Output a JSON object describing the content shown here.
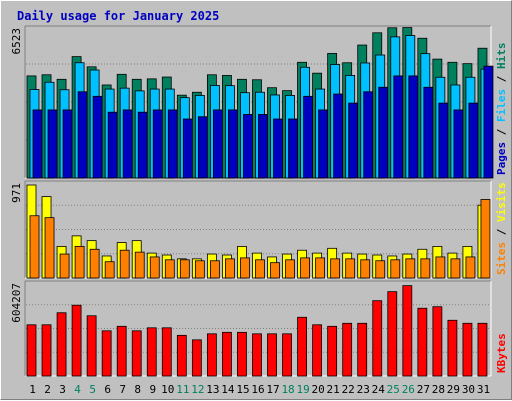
{
  "chart_data": {
    "type": "bar",
    "title": "Daily usage for January 2025",
    "categories": [
      "1",
      "2",
      "3",
      "4",
      "5",
      "6",
      "7",
      "8",
      "9",
      "10",
      "11",
      "12",
      "13",
      "14",
      "15",
      "16",
      "17",
      "18",
      "19",
      "20",
      "21",
      "22",
      "23",
      "24",
      "25",
      "26",
      "27",
      "28",
      "29",
      "30",
      "31"
    ],
    "weekend_days": [
      "4",
      "5",
      "11",
      "12",
      "18",
      "19",
      "25",
      "26"
    ],
    "panels": [
      {
        "id": "hits",
        "ymax_label": "6523",
        "ylim": [
          0,
          6523
        ],
        "legend": [
          "Hits",
          "Files",
          "Pages"
        ],
        "series": [
          {
            "name": "Hits",
            "color": "#00805f",
            "values": [
              4500,
              4550,
              4350,
              5350,
              4900,
              4100,
              4570,
              4350,
              4370,
              4450,
              3650,
              3780,
              4550,
              4520,
              4350,
              4330,
              3980,
              3850,
              5100,
              4620,
              5490,
              5080,
              5860,
              6400,
              6620,
              6630,
              6160,
              5240,
              5100,
              5040,
              5720
            ]
          },
          {
            "name": "Files",
            "color": "#00c0ff",
            "values": [
              3900,
              4220,
              3890,
              5080,
              4760,
              3920,
              3960,
              3840,
              3920,
              3920,
              3540,
              3640,
              4080,
              4070,
              3760,
              3780,
              3660,
              3640,
              4880,
              3920,
              5000,
              4520,
              5070,
              5420,
              6220,
              6280,
              5480,
              4440,
              4100,
              4440,
              4800
            ]
          },
          {
            "name": "Pages",
            "color": "#0000c0",
            "values": [
              3000,
              3000,
              3000,
              3800,
              3600,
              2900,
              3000,
              2900,
              3000,
              3000,
              2600,
              2700,
              3000,
              3000,
              2800,
              2800,
              2600,
              2600,
              3600,
              3000,
              3700,
              3300,
              3800,
              4000,
              4500,
              4500,
              4000,
              3300,
              3000,
              3300,
              4930
            ]
          }
        ]
      },
      {
        "id": "visits",
        "ymax_label": "971",
        "ylim": [
          0,
          971
        ],
        "legend": [
          "Visits",
          "Sites"
        ],
        "series": [
          {
            "name": "Visits",
            "color": "#ffff00",
            "values": [
              971,
              850,
              330,
              440,
              390,
              230,
              370,
              390,
              260,
              240,
              200,
              200,
              250,
              240,
              330,
              260,
              220,
              250,
              290,
              260,
              310,
              260,
              250,
              240,
              230,
              250,
              300,
              330,
              260,
              330,
              760
            ]
          },
          {
            "name": "Sites",
            "color": "#ff8000",
            "values": [
              650,
              630,
              250,
              330,
              300,
              170,
              290,
              270,
              220,
              190,
              190,
              180,
              180,
              200,
              210,
              190,
              160,
              190,
              210,
              210,
              200,
              200,
              190,
              180,
              190,
              200,
              200,
              220,
              200,
              220,
              820
            ]
          }
        ]
      },
      {
        "id": "kbytes",
        "ymax_label": "604207",
        "ylim": [
          0,
          604207
        ],
        "legend": [
          "KBytes"
        ],
        "series": [
          {
            "name": "KBytes",
            "color": "#ff0000",
            "values": [
              340000,
              340000,
              420000,
              470000,
              400000,
              300000,
              330000,
              300000,
              320000,
              320000,
              270000,
              240000,
              280000,
              290000,
              290000,
              280000,
              280000,
              280000,
              390000,
              340000,
              330000,
              350000,
              350000,
              500000,
              560000,
              600000,
              450000,
              460000,
              370000,
              350000,
              350000
            ]
          }
        ]
      }
    ]
  }
}
